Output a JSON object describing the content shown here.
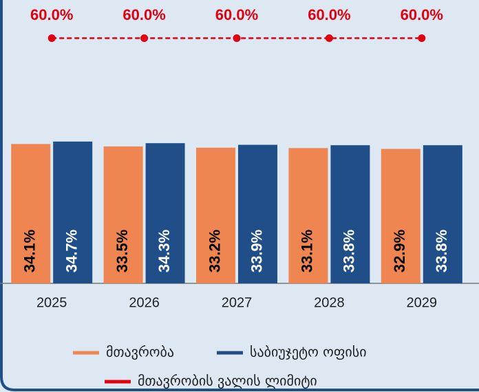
{
  "chart_data": {
    "type": "bar",
    "categories": [
      "2025",
      "2026",
      "2027",
      "2028",
      "2029"
    ],
    "series": [
      {
        "name": "მთავრობა",
        "color": "#ef8550",
        "values": [
          34.1,
          33.5,
          33.2,
          33.1,
          32.9
        ],
        "value_labels": [
          "34.1%",
          "33.5%",
          "33.2%",
          "33.1%",
          "32.9%"
        ]
      },
      {
        "name": "საბიუჯეტო ოფისი",
        "color": "#1f4e89",
        "values": [
          34.7,
          34.3,
          33.9,
          33.8,
          33.8
        ],
        "value_labels": [
          "34.7%",
          "34.3%",
          "33.9%",
          "33.8%",
          "33.8%"
        ]
      },
      {
        "name": "მთავრობის ვალის ლიმიტი",
        "type": "line",
        "color": "#e0000f",
        "values": [
          60,
          60,
          60,
          60,
          60
        ],
        "value_labels": [
          "60.0%",
          "60.0%",
          "60.0%",
          "60.0%",
          "60.0%"
        ]
      }
    ],
    "ylim": [
      0,
      69
    ],
    "legend": "bottom"
  }
}
